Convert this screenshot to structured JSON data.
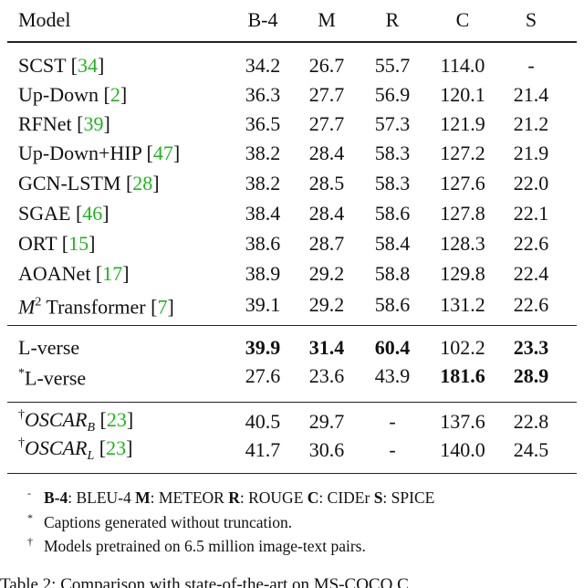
{
  "table": {
    "header": [
      "Model",
      "B-4",
      "M",
      "R",
      "C",
      "S"
    ],
    "rows": [
      {
        "model": [
          "SCST [",
          "34",
          "]"
        ],
        "scores": [
          "34.2",
          "26.7",
          "55.7",
          "114.0",
          "-"
        ]
      },
      {
        "model": [
          "Up-Down [",
          "2",
          "]"
        ],
        "scores": [
          "36.3",
          "27.7",
          "56.9",
          "120.1",
          "21.4"
        ]
      },
      {
        "model": [
          "RFNet [",
          "39",
          "]"
        ],
        "scores": [
          "36.5",
          "27.7",
          "57.3",
          "121.9",
          "21.2"
        ]
      },
      {
        "model": [
          "Up-Down+HIP [",
          "47",
          "]"
        ],
        "scores": [
          "38.2",
          "28.4",
          "58.3",
          "127.2",
          "21.9"
        ]
      },
      {
        "model": [
          "GCN-LSTM [",
          "28",
          "]"
        ],
        "scores": [
          "38.2",
          "28.5",
          "58.3",
          "127.6",
          "22.0"
        ]
      },
      {
        "model": [
          "SGAE [",
          "46",
          "]"
        ],
        "scores": [
          "38.4",
          "28.4",
          "58.6",
          "127.8",
          "22.1"
        ]
      },
      {
        "model": [
          "ORT [",
          "15",
          "]"
        ],
        "scores": [
          "38.6",
          "28.7",
          "58.4",
          "128.3",
          "22.6"
        ]
      },
      {
        "model": [
          "AOANet [",
          "17",
          "]"
        ],
        "scores": [
          "38.9",
          "29.2",
          "58.8",
          "129.8",
          "22.4"
        ]
      },
      {
        "model": [
          "M",
          "2",
          " Transformer [",
          "7",
          "]"
        ],
        "scores": [
          "39.1",
          "29.2",
          "58.6",
          "131.2",
          "22.6"
        ]
      },
      {
        "model": [
          "L-verse"
        ],
        "scores": [
          "39.9",
          "31.4",
          "60.4",
          "102.2",
          "23.3"
        ]
      },
      {
        "model": [
          "*",
          "L-verse"
        ],
        "scores": [
          "27.6",
          "23.6",
          "43.9",
          "181.6",
          "28.9"
        ]
      },
      {
        "model": [
          "†",
          "OSCAR",
          "B",
          " [",
          "23",
          "]"
        ],
        "scores": [
          "40.5",
          "29.7",
          "-",
          "137.6",
          "22.8"
        ]
      },
      {
        "model": [
          "†",
          "OSCAR",
          "L",
          " [",
          "23",
          "]"
        ],
        "scores": [
          "41.7",
          "30.6",
          "-",
          "140.0",
          "24.5"
        ]
      }
    ]
  },
  "footnotes": [
    [
      "-",
      "B-4",
      ": BLEU-4 ",
      "M",
      ": METEOR ",
      "R",
      ": ROUGE ",
      "C",
      ": CIDEr ",
      "S",
      ": SPICE"
    ],
    [
      "*",
      "Captions generated without truncation."
    ],
    [
      "†",
      "Models pretrained on 6.5 million image-text pairs."
    ]
  ],
  "caption": "Table 2:  Comparison with state-of-the-art on MS-COCO C"
}
